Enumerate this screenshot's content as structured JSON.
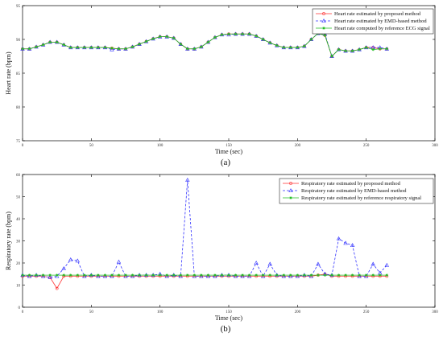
{
  "chart_data": [
    {
      "type": "line",
      "caption": "(a)",
      "xlabel": "Time (sec)",
      "ylabel": "Heart rate (bpm)",
      "xlim": [
        0,
        300
      ],
      "ylim": [
        75,
        95
      ],
      "xticks": [
        0,
        50,
        100,
        150,
        200,
        250,
        300
      ],
      "yticks": [
        75,
        80,
        85,
        90,
        95
      ],
      "legend_position": "top-right",
      "x": [
        0,
        5,
        10,
        15,
        20,
        25,
        30,
        35,
        40,
        45,
        50,
        55,
        60,
        65,
        70,
        75,
        80,
        85,
        90,
        95,
        100,
        105,
        110,
        115,
        120,
        125,
        130,
        135,
        140,
        145,
        150,
        155,
        160,
        165,
        170,
        175,
        180,
        185,
        190,
        195,
        200,
        205,
        210,
        215,
        220,
        225,
        230,
        235,
        240,
        245,
        250,
        255,
        260,
        265
      ],
      "series": [
        {
          "name": "Heart rate estimated by proposed method",
          "color": "#ff3333",
          "marker": "circle",
          "dash": "solid",
          "values": [
            88.6,
            88.6,
            88.9,
            89.2,
            89.6,
            89.6,
            89.2,
            88.8,
            88.8,
            88.8,
            88.8,
            88.8,
            88.8,
            88.7,
            88.6,
            88.6,
            88.9,
            89.3,
            89.7,
            90.1,
            90.4,
            90.4,
            90.2,
            89.3,
            88.6,
            88.6,
            88.9,
            89.6,
            90.3,
            90.7,
            90.8,
            90.8,
            90.8,
            90.8,
            90.5,
            90.0,
            89.5,
            89.1,
            88.8,
            88.8,
            88.8,
            89.0,
            90.0,
            90.9,
            90.6,
            87.5,
            88.5,
            88.3,
            88.3,
            88.5,
            88.8,
            88.8,
            88.6,
            88.6
          ]
        },
        {
          "name": "Heart rate estimated by EMD-based method",
          "color": "#3333ff",
          "marker": "triangle",
          "dash": "dashed",
          "values": [
            88.6,
            88.6,
            88.9,
            89.2,
            89.6,
            89.6,
            89.2,
            88.8,
            88.8,
            88.8,
            88.8,
            88.8,
            88.8,
            88.5,
            88.6,
            88.6,
            88.9,
            89.3,
            89.7,
            90.1,
            90.4,
            90.4,
            90.2,
            89.3,
            88.6,
            88.6,
            88.9,
            89.6,
            90.3,
            90.7,
            90.7,
            90.8,
            90.8,
            90.8,
            90.5,
            90.0,
            89.5,
            89.1,
            88.8,
            88.8,
            88.8,
            89.0,
            90.0,
            90.9,
            90.8,
            87.5,
            88.5,
            88.3,
            88.3,
            88.5,
            88.8,
            88.8,
            88.8,
            88.6
          ]
        },
        {
          "name": "Heart rate computed by reference ECG signal",
          "color": "#22bb22",
          "marker": "star",
          "dash": "solid",
          "values": [
            88.6,
            88.6,
            88.9,
            89.2,
            89.6,
            89.6,
            89.2,
            88.8,
            88.8,
            88.8,
            88.8,
            88.8,
            88.8,
            88.7,
            88.6,
            88.6,
            88.9,
            89.3,
            89.7,
            90.1,
            90.4,
            90.4,
            90.2,
            89.3,
            88.6,
            88.6,
            88.9,
            89.6,
            90.3,
            90.7,
            90.8,
            90.8,
            90.8,
            90.8,
            90.5,
            90.0,
            89.5,
            89.1,
            88.8,
            88.8,
            88.8,
            89.0,
            90.0,
            90.9,
            90.6,
            87.5,
            88.5,
            88.3,
            88.3,
            88.5,
            88.8,
            88.5,
            88.6,
            88.6
          ]
        }
      ]
    },
    {
      "type": "line",
      "caption": "(b)",
      "xlabel": "Time (sec)",
      "ylabel": "Respiratory rate (bpm)",
      "xlim": [
        0,
        300
      ],
      "ylim": [
        0,
        60
      ],
      "xticks": [
        0,
        50,
        100,
        150,
        200,
        250,
        300
      ],
      "yticks": [
        0,
        10,
        20,
        30,
        40,
        50,
        60
      ],
      "legend_position": "top-right",
      "x": [
        0,
        5,
        10,
        15,
        20,
        25,
        30,
        35,
        40,
        45,
        50,
        55,
        60,
        65,
        70,
        75,
        80,
        85,
        90,
        95,
        100,
        105,
        110,
        115,
        120,
        125,
        130,
        135,
        140,
        145,
        150,
        155,
        160,
        165,
        170,
        175,
        180,
        185,
        190,
        195,
        200,
        205,
        210,
        215,
        220,
        225,
        230,
        235,
        240,
        245,
        250,
        255,
        260,
        265
      ],
      "series": [
        {
          "name": "Respiratory rate estimated by proposed method",
          "color": "#ff3333",
          "marker": "circle",
          "dash": "solid",
          "values": [
            14,
            14,
            14,
            14,
            13.5,
            8.5,
            14,
            14,
            14,
            14,
            14,
            14,
            14,
            14,
            14,
            14,
            14,
            14,
            14,
            14,
            14,
            14,
            14,
            14,
            14,
            14,
            14,
            14,
            14,
            14,
            14,
            14,
            14,
            14,
            14,
            14,
            14,
            14,
            14,
            14,
            14,
            14,
            14,
            14.5,
            15,
            14,
            14,
            14,
            14,
            14,
            14,
            14,
            14,
            14
          ]
        },
        {
          "name": "Respiratory rate estimated by EMD-based method",
          "color": "#3333ff",
          "marker": "triangle",
          "dash": "dashed",
          "values": [
            14.5,
            14,
            14.5,
            14,
            13.5,
            14,
            17.5,
            21.5,
            21,
            14,
            14.5,
            14,
            14,
            14,
            20.5,
            14,
            14,
            14.5,
            14.5,
            14.5,
            15,
            14,
            14.5,
            14,
            57.5,
            14,
            14,
            14,
            14,
            14.5,
            14.5,
            14,
            14,
            14,
            20,
            14,
            19.5,
            14.5,
            14,
            14,
            14,
            14.5,
            14,
            19.5,
            15,
            14.5,
            31,
            29,
            28,
            14,
            14,
            19.5,
            15.5,
            19
          ]
        },
        {
          "name": "Respiratory rate estimated by reference respiratory signal",
          "color": "#22bb22",
          "marker": "star",
          "dash": "solid",
          "values": [
            14.5,
            14.5,
            14.5,
            14.5,
            14.5,
            14.5,
            14.5,
            14.5,
            14.5,
            14.5,
            14.5,
            14.5,
            14.5,
            14.5,
            14.5,
            14.5,
            14.5,
            14.5,
            14.5,
            14.5,
            14.5,
            14.5,
            14.5,
            14.5,
            14.5,
            14.5,
            14.5,
            14.5,
            14.5,
            14.5,
            14.5,
            14.5,
            14.5,
            14.5,
            14.5,
            14.5,
            14.5,
            14.5,
            14.5,
            14.5,
            14.5,
            14.5,
            14.5,
            14.5,
            14.5,
            14.5,
            14.5,
            14.5,
            14.5,
            14.5,
            14.5,
            14.5,
            14.5,
            14.5
          ]
        }
      ]
    }
  ]
}
